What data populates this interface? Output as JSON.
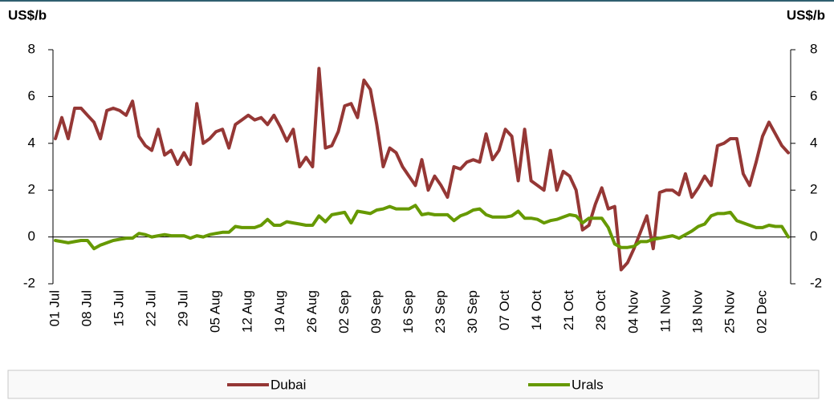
{
  "chart_data": {
    "type": "line",
    "y_label": "US$/b",
    "y2_label": "US$/b",
    "categories": [
      "01 Jul",
      null,
      null,
      null,
      null,
      "08 Jul",
      null,
      null,
      null,
      null,
      "15 Jul",
      null,
      null,
      null,
      null,
      "22 Jul",
      null,
      null,
      null,
      null,
      "29 Jul",
      null,
      null,
      null,
      null,
      "05 Aug",
      null,
      null,
      null,
      null,
      "12 Aug",
      null,
      null,
      null,
      null,
      "19 Aug",
      null,
      null,
      null,
      null,
      "26 Aug",
      null,
      null,
      null,
      null,
      "02 Sep",
      null,
      null,
      null,
      null,
      "09 Sep",
      null,
      null,
      null,
      null,
      "16 Sep",
      null,
      null,
      null,
      null,
      "23 Sep",
      null,
      null,
      null,
      null,
      "30 Sep",
      null,
      null,
      null,
      null,
      "07 Oct",
      null,
      null,
      null,
      null,
      "14 Oct",
      null,
      null,
      null,
      null,
      "21 Oct",
      null,
      null,
      null,
      null,
      "28 Oct",
      null,
      null,
      null,
      null,
      "04 Nov",
      null,
      null,
      null,
      null,
      "11 Nov",
      null,
      null,
      null,
      null,
      "18 Nov",
      null,
      null,
      null,
      null,
      "25 Nov",
      null,
      null,
      null,
      null,
      "02 Dec",
      null,
      null,
      null,
      null
    ],
    "series": [
      {
        "name": "Dubai",
        "color": "#953735",
        "values": [
          4.2,
          5.1,
          4.2,
          5.5,
          5.5,
          5.2,
          4.9,
          4.2,
          5.4,
          5.5,
          5.4,
          5.2,
          5.8,
          4.3,
          3.9,
          3.7,
          4.6,
          3.5,
          3.7,
          3.1,
          3.6,
          3.1,
          5.7,
          4.0,
          4.2,
          4.5,
          4.6,
          3.8,
          4.8,
          5.0,
          5.2,
          5.0,
          5.1,
          4.8,
          5.2,
          4.7,
          4.1,
          4.6,
          3.0,
          3.4,
          3.0,
          7.2,
          3.8,
          3.9,
          4.5,
          5.6,
          5.7,
          5.1,
          6.7,
          6.3,
          4.8,
          3.0,
          3.8,
          3.6,
          3.0,
          2.6,
          2.2,
          3.3,
          2.0,
          2.6,
          2.2,
          1.7,
          3.0,
          2.9,
          3.2,
          3.3,
          3.2,
          4.4,
          3.3,
          3.7,
          4.6,
          4.3,
          2.4,
          4.6,
          2.4,
          2.2,
          2.0,
          3.7,
          2.0,
          2.8,
          2.6,
          2.0,
          0.3,
          0.5,
          1.4,
          2.1,
          1.2,
          1.3,
          -1.4,
          -1.1,
          -0.5,
          0.2,
          0.9,
          -0.5,
          1.9,
          2.0,
          2.0,
          1.8,
          2.7,
          1.7,
          2.1,
          2.6,
          2.2,
          3.9,
          4.0,
          4.2,
          4.2,
          2.7,
          2.2,
          3.2,
          4.3,
          4.9,
          4.4,
          3.9,
          3.6
        ]
      },
      {
        "name": "Urals",
        "color": "#669900",
        "values": [
          -0.15,
          -0.2,
          -0.25,
          -0.2,
          -0.15,
          -0.15,
          -0.5,
          -0.35,
          -0.25,
          -0.15,
          -0.1,
          -0.05,
          -0.05,
          0.15,
          0.1,
          0.0,
          0.05,
          0.1,
          0.05,
          0.05,
          0.05,
          -0.05,
          0.05,
          0.0,
          0.1,
          0.15,
          0.2,
          0.2,
          0.45,
          0.4,
          0.4,
          0.4,
          0.5,
          0.75,
          0.5,
          0.5,
          0.65,
          0.6,
          0.55,
          0.5,
          0.5,
          0.9,
          0.65,
          0.95,
          1.0,
          1.05,
          0.6,
          1.1,
          1.05,
          1.0,
          1.15,
          1.2,
          1.3,
          1.2,
          1.2,
          1.2,
          1.35,
          0.95,
          1.0,
          0.95,
          0.95,
          0.95,
          0.7,
          0.9,
          1.0,
          1.15,
          1.2,
          0.95,
          0.85,
          0.85,
          0.85,
          0.9,
          1.1,
          0.8,
          0.8,
          0.75,
          0.6,
          0.7,
          0.75,
          0.85,
          0.95,
          0.9,
          0.6,
          0.8,
          0.8,
          0.8,
          0.4,
          -0.3,
          -0.45,
          -0.45,
          -0.4,
          -0.2,
          -0.2,
          -0.1,
          -0.05,
          0.0,
          0.05,
          -0.05,
          0.1,
          0.25,
          0.45,
          0.55,
          0.9,
          1.0,
          1.0,
          1.05,
          0.7,
          0.6,
          0.5,
          0.4,
          0.4,
          0.5,
          0.45,
          0.45,
          0.0
        ]
      }
    ],
    "ylim": [
      -2,
      8
    ],
    "yticks": [
      -2,
      0,
      2,
      4,
      6,
      8
    ],
    "y2lim": [
      -2,
      8
    ],
    "y2ticks": [
      -2,
      0,
      2,
      4,
      6,
      8
    ],
    "legend": "bottom"
  }
}
